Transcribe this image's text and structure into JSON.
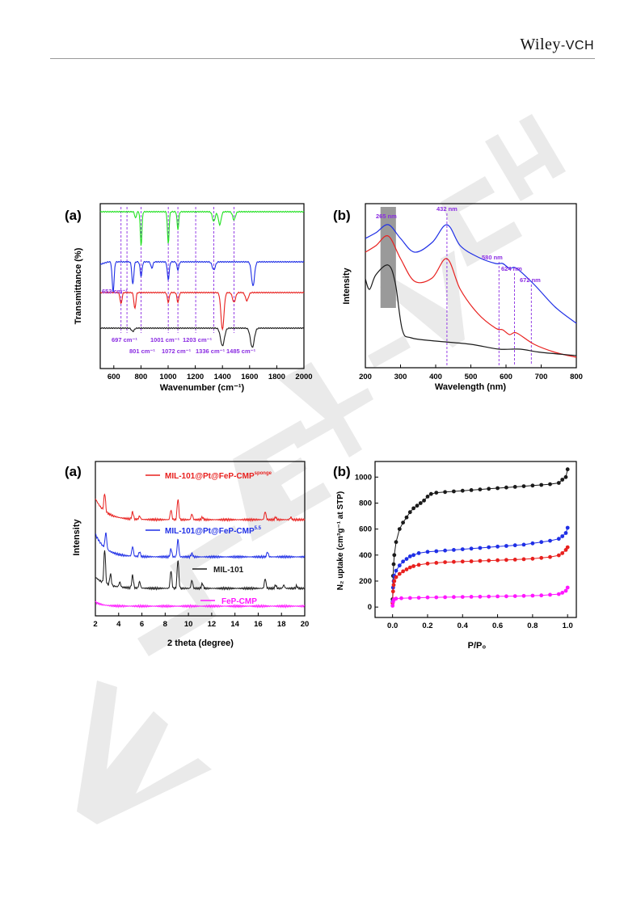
{
  "header": {
    "publisher_wiley": "Wiley",
    "publisher_vch": "-VCH"
  },
  "watermark": {
    "text": "WILEY-VCH",
    "color": "#d6d6d6"
  },
  "colors": {
    "black": "#1a1a1a",
    "red": "#e8201e",
    "blue": "#1f2fe6",
    "green": "#21e021",
    "magenta": "#ff17ff",
    "purple": "#8a2be2",
    "shade": "#9a9a9a"
  },
  "figures": {
    "ftir": {
      "panel_label": "(a)",
      "xlabel": "Wavenumber (cm⁻¹)",
      "ylabel": "Transmittance (%)",
      "xticks": [
        "600",
        "800",
        "1000",
        "1200",
        "1400",
        "1600",
        "1800",
        "2000"
      ],
      "markers": [
        653,
        697,
        801,
        1001,
        1072,
        1203,
        1336,
        1485
      ],
      "annotations": {
        "a653": "653 cm⁻¹",
        "a697": "697 cm⁻¹",
        "a801": "801 cm⁻¹",
        "a1001": "1001 cm⁻¹",
        "a1072": "1072 cm⁻¹",
        "a1203": "1203 cm⁻¹",
        "a1336": "1336 cm⁻¹",
        "a1485": "1485 cm⁻¹"
      }
    },
    "uvvis": {
      "panel_label": "(b)",
      "xlabel": "Wavelength (nm)",
      "ylabel": "Intensity",
      "xticks": [
        "200",
        "300",
        "400",
        "500",
        "600",
        "700",
        "800"
      ],
      "markers": [
        432,
        580,
        624,
        672
      ],
      "annotations": {
        "a265": "265 nm",
        "a432": "432 nm",
        "a580": "580 nm",
        "a624": "624 nm",
        "a672": "672 nm"
      }
    },
    "xrd": {
      "panel_label": "(a)",
      "xlabel": "2 theta (degree)",
      "ylabel": "Intensity",
      "xticks": [
        "2",
        "4",
        "6",
        "8",
        "10",
        "12",
        "14",
        "16",
        "18",
        "20"
      ],
      "legend": {
        "sponge_main": "MIL-101@Pt@FeP-CMP",
        "sponge_sup": "sponge",
        "ratio_main": "MIL-101@Pt@FeP-CMP",
        "ratio_sup": "5.5",
        "mil": "MIL-101",
        "fep": "FeP-CMP"
      }
    },
    "n2": {
      "panel_label": "(b)",
      "xlabel": "P/P₀",
      "ylabel": "N₂ uptake (cm³g⁻¹ at STP)",
      "xticks": [
        "0.0",
        "0.2",
        "0.4",
        "0.6",
        "0.8",
        "1.0"
      ],
      "yticks": [
        "0",
        "200",
        "400",
        "600",
        "800",
        "1000"
      ]
    }
  },
  "chart_data": [
    {
      "type": "line",
      "panel": "(a) top",
      "xlabel": "Wavenumber (cm⁻¹)",
      "ylabel": "Transmittance (%)",
      "xlim": [
        500,
        2000
      ],
      "series": [
        {
          "color": "#21e021",
          "dips": [
            801,
            1001,
            1072,
            1336,
            1485
          ]
        },
        {
          "color": "#1f2fe6",
          "dips": [
            595,
            740,
            801,
            1001,
            1336,
            1625
          ]
        },
        {
          "color": "#e8201e",
          "dips": [
            653,
            755,
            1001,
            1072,
            1400,
            1485
          ]
        },
        {
          "color": "#1a1a1a",
          "dips": [
            1400,
            1620
          ]
        }
      ],
      "markers": [
        653,
        697,
        801,
        1001,
        1072,
        1203,
        1336,
        1485
      ]
    },
    {
      "type": "line",
      "panel": "(b) top",
      "xlabel": "Wavelength (nm)",
      "ylabel": "Intensity",
      "xlim": [
        200,
        800
      ],
      "series": [
        {
          "color": "#1f2fe6",
          "peaks": [
            265,
            432,
            580,
            624
          ]
        },
        {
          "color": "#e8201e",
          "peaks": [
            265,
            432,
            580,
            624
          ]
        },
        {
          "color": "#1a1a1a",
          "peaks": [
            265
          ]
        }
      ],
      "markers": [
        265,
        432,
        580,
        624,
        672
      ]
    },
    {
      "type": "line",
      "panel": "(a) bottom",
      "xlabel": "2 theta (degree)",
      "ylabel": "Intensity",
      "xlim": [
        2,
        20
      ],
      "series": [
        {
          "name": "MIL-101@Pt@FeP-CMPsponge",
          "color": "#e8201e",
          "peaks": [
            2.8,
            5.2,
            8.5,
            9.1,
            10.3,
            16.6
          ]
        },
        {
          "name": "MIL-101@Pt@FeP-CMP5.5",
          "color": "#1f2fe6",
          "peaks": [
            2.8,
            5.2,
            8.5,
            9.1,
            16.8
          ]
        },
        {
          "name": "MIL-101",
          "color": "#1a1a1a",
          "peaks": [
            2.8,
            3.3,
            5.2,
            5.8,
            8.5,
            9.1,
            10.3,
            11.2,
            16.6
          ]
        },
        {
          "name": "FeP-CMP",
          "color": "#ff17ff",
          "peaks": []
        }
      ]
    },
    {
      "type": "scatter",
      "panel": "(b) bottom",
      "xlabel": "P/P₀",
      "ylabel": "N₂ uptake (cm³g⁻¹ at STP)",
      "xlim": [
        -0.1,
        1.05
      ],
      "ylim": [
        -80,
        1120
      ],
      "series": [
        {
          "color": "#1a1a1a",
          "x": [
            0.0,
            0.003,
            0.006,
            0.01,
            0.02,
            0.04,
            0.06,
            0.08,
            0.1,
            0.12,
            0.14,
            0.16,
            0.18,
            0.2,
            0.22,
            0.25,
            0.3,
            0.35,
            0.4,
            0.45,
            0.5,
            0.55,
            0.6,
            0.65,
            0.7,
            0.75,
            0.8,
            0.85,
            0.9,
            0.95,
            0.97,
            0.99,
            1.0
          ],
          "y": [
            60,
            240,
            330,
            400,
            500,
            600,
            650,
            690,
            730,
            760,
            780,
            800,
            820,
            850,
            870,
            880,
            885,
            890,
            895,
            900,
            905,
            910,
            915,
            920,
            925,
            930,
            935,
            940,
            945,
            955,
            980,
            1000,
            1060
          ]
        },
        {
          "color": "#1f2fe6",
          "x": [
            0.0,
            0.003,
            0.006,
            0.01,
            0.02,
            0.04,
            0.06,
            0.08,
            0.1,
            0.12,
            0.15,
            0.2,
            0.25,
            0.3,
            0.35,
            0.4,
            0.45,
            0.5,
            0.55,
            0.6,
            0.65,
            0.7,
            0.75,
            0.8,
            0.85,
            0.9,
            0.95,
            0.97,
            0.99,
            1.0
          ],
          "y": [
            40,
            150,
            200,
            240,
            280,
            320,
            350,
            370,
            390,
            400,
            415,
            425,
            430,
            435,
            440,
            445,
            450,
            455,
            460,
            465,
            470,
            475,
            480,
            490,
            500,
            510,
            525,
            545,
            570,
            610
          ]
        },
        {
          "color": "#e8201e",
          "x": [
            0.0,
            0.003,
            0.006,
            0.01,
            0.02,
            0.04,
            0.06,
            0.08,
            0.1,
            0.12,
            0.15,
            0.2,
            0.25,
            0.3,
            0.35,
            0.4,
            0.45,
            0.5,
            0.55,
            0.6,
            0.65,
            0.7,
            0.75,
            0.8,
            0.85,
            0.9,
            0.95,
            0.97,
            0.99,
            1.0
          ],
          "y": [
            30,
            120,
            170,
            200,
            230,
            255,
            275,
            290,
            305,
            315,
            325,
            335,
            340,
            345,
            348,
            350,
            352,
            355,
            358,
            360,
            363,
            365,
            368,
            372,
            378,
            385,
            398,
            415,
            440,
            460
          ]
        },
        {
          "color": "#ff17ff",
          "x": [
            0.0,
            0.003,
            0.006,
            0.01,
            0.02,
            0.05,
            0.1,
            0.15,
            0.2,
            0.25,
            0.3,
            0.35,
            0.4,
            0.45,
            0.5,
            0.55,
            0.6,
            0.65,
            0.7,
            0.75,
            0.8,
            0.85,
            0.9,
            0.95,
            0.97,
            0.99,
            1.0
          ],
          "y": [
            10,
            40,
            55,
            60,
            65,
            68,
            70,
            72,
            74,
            75,
            76,
            77,
            78,
            79,
            80,
            81,
            82,
            83,
            84,
            86,
            88,
            90,
            95,
            100,
            110,
            125,
            150
          ]
        }
      ]
    }
  ]
}
